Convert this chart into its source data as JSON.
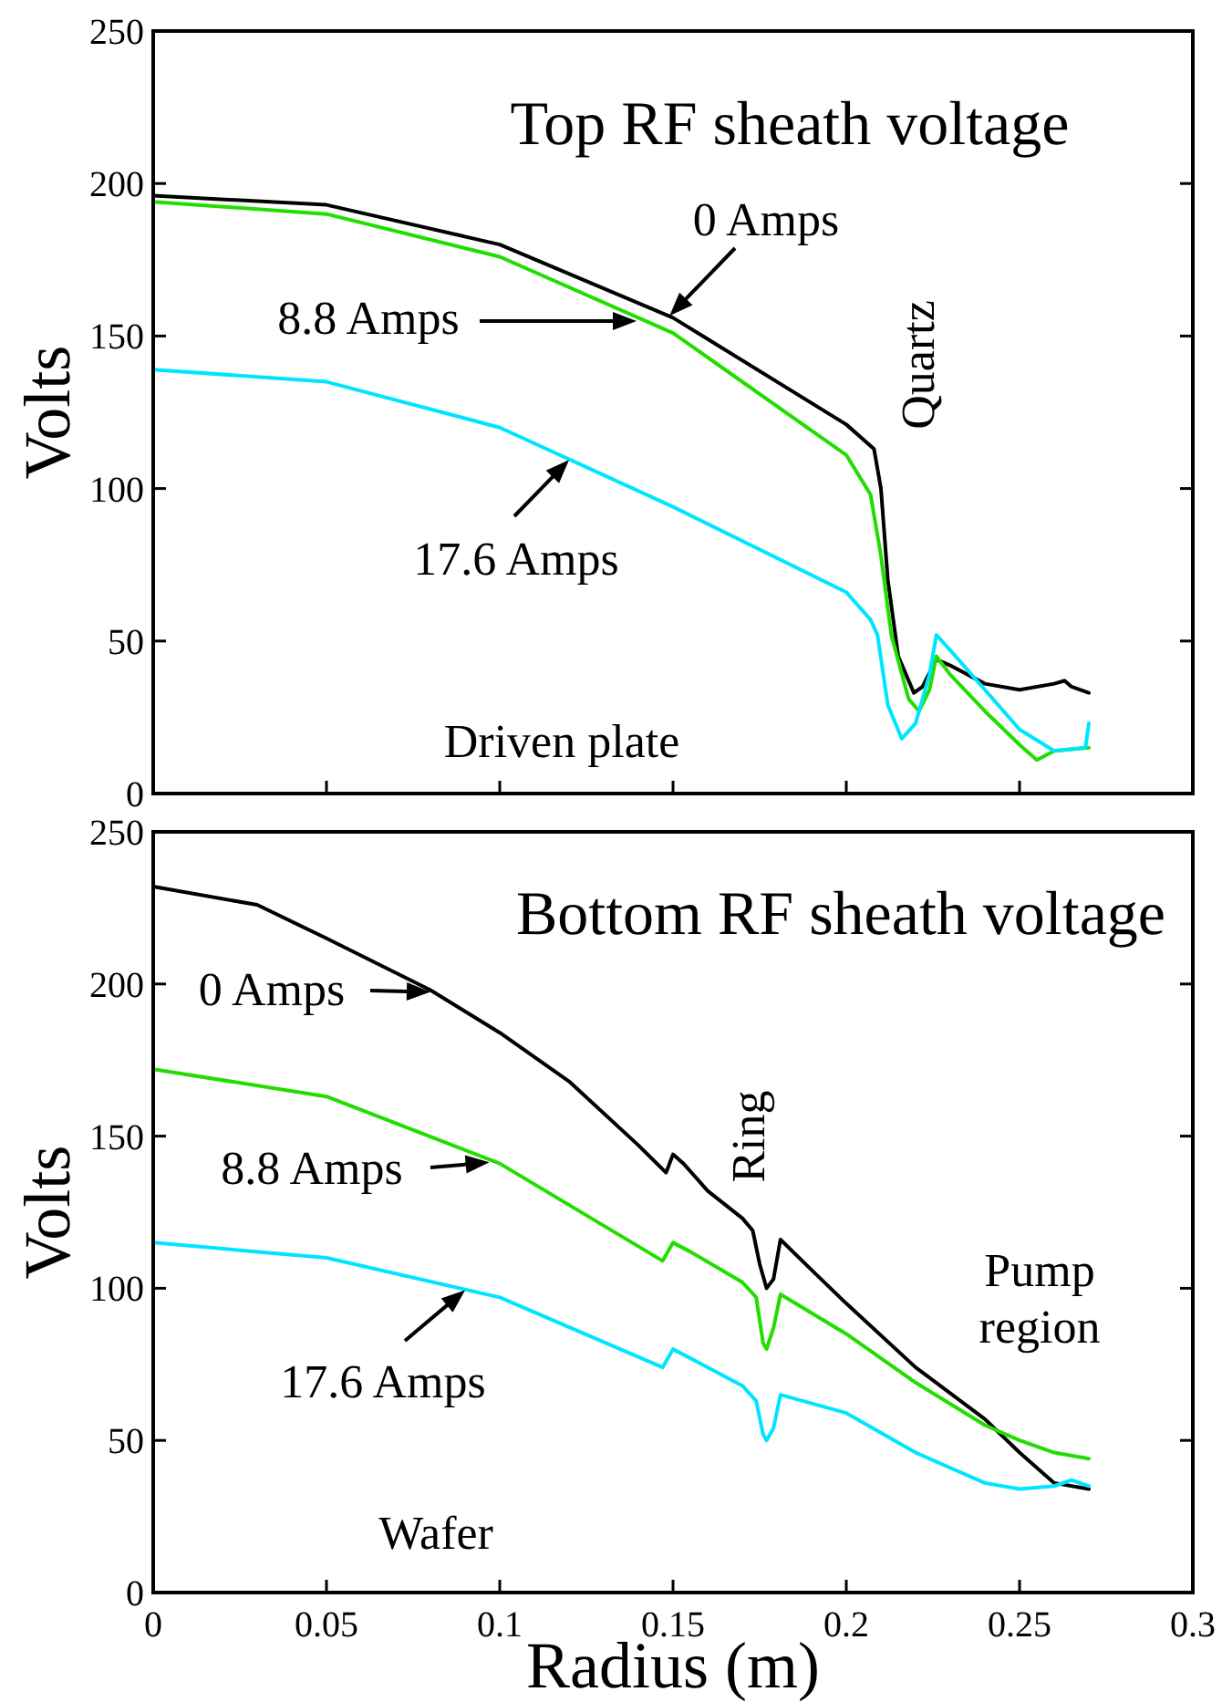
{
  "chart_data": [
    {
      "type": "line",
      "title": "Top RF sheath voltage",
      "ylabel": "Volts",
      "xlim": [
        0,
        0.3
      ],
      "xticks": [
        0,
        0.05,
        0.1,
        0.15,
        0.2,
        0.25,
        0.3
      ],
      "ylim": [
        0,
        250
      ],
      "yticks": [
        0,
        50,
        100,
        150,
        200,
        250
      ],
      "tick_labels": "y",
      "grid": false,
      "annotations": [
        {
          "text": "0 Amps",
          "x": 0.149,
          "y": 156
        },
        "8.8 Amps",
        {
          "text": "17.6 Amps",
          "x": 0.12,
          "y": 110
        },
        "Quartz",
        "Driven plate"
      ],
      "series": [
        {
          "color": "#000000",
          "x": [
            0,
            0.05,
            0.1,
            0.15,
            0.2,
            0.208,
            0.21,
            0.212,
            0.215,
            0.2195,
            0.222,
            0.226,
            0.23,
            0.24,
            0.25,
            0.26,
            0.263,
            0.265,
            0.27
          ],
          "values": [
            196,
            193,
            180,
            156,
            121,
            113,
            100,
            70,
            45,
            33,
            35,
            44,
            42,
            36,
            34,
            36,
            37,
            35,
            33
          ]
        },
        {
          "color": "#22dd00",
          "x": [
            0,
            0.05,
            0.1,
            0.15,
            0.2,
            0.207,
            0.21,
            0.213,
            0.218,
            0.221,
            0.224,
            0.226,
            0.23,
            0.24,
            0.25,
            0.255,
            0.26,
            0.27
          ],
          "values": [
            194,
            190,
            176,
            151,
            111,
            98,
            78,
            52,
            31,
            27,
            34,
            45,
            39,
            27,
            16,
            11,
            14,
            15
          ]
        },
        {
          "color": "#00e5ff",
          "x": [
            0,
            0.05,
            0.1,
            0.15,
            0.2,
            0.207,
            0.209,
            0.212,
            0.216,
            0.22,
            0.224,
            0.226,
            0.23,
            0.24,
            0.25,
            0.26,
            0.269,
            0.27
          ],
          "values": [
            139,
            135,
            120,
            94,
            66,
            57,
            52,
            29,
            18,
            23,
            39,
            52,
            47,
            34,
            21,
            14,
            15,
            23
          ]
        }
      ]
    },
    {
      "type": "line",
      "title": "Bottom RF sheath voltage",
      "xlabel": "Radius (m)",
      "ylabel": "Volts",
      "xlim": [
        0,
        0.3
      ],
      "xticks": [
        0,
        0.05,
        0.1,
        0.15,
        0.2,
        0.25,
        0.3
      ],
      "ylim": [
        0,
        250
      ],
      "yticks": [
        0,
        50,
        100,
        150,
        200,
        250
      ],
      "grid": false,
      "annotations": [
        {
          "text": "0 Amps",
          "x": 0.08,
          "y": 198
        },
        {
          "text": "8.8 Amps",
          "x": 0.097,
          "y": 142
        },
        {
          "text": "17.6 Amps",
          "x": 0.09,
          "y": 100
        },
        "Ring",
        "Pump region",
        "Wafer"
      ],
      "series": [
        {
          "color": "#000000",
          "x": [
            0,
            0.03,
            0.05,
            0.08,
            0.1,
            0.12,
            0.14,
            0.148,
            0.15,
            0.153,
            0.16,
            0.17,
            0.173,
            0.175,
            0.177,
            0.179,
            0.181,
            0.19,
            0.2,
            0.22,
            0.24,
            0.25,
            0.26,
            0.27
          ],
          "values": [
            232,
            226,
            215,
            198,
            184,
            168,
            147,
            138,
            144,
            141,
            132,
            123,
            119,
            108,
            100,
            103,
            116,
            106,
            95,
            74,
            57,
            46,
            36,
            34
          ]
        },
        {
          "color": "#22dd00",
          "x": [
            0,
            0.05,
            0.1,
            0.147,
            0.15,
            0.155,
            0.17,
            0.174,
            0.176,
            0.177,
            0.179,
            0.181,
            0.2,
            0.22,
            0.24,
            0.25,
            0.26,
            0.27
          ],
          "values": [
            172,
            163,
            141,
            109,
            115,
            112,
            102,
            97,
            82,
            80,
            87,
            98,
            85,
            69,
            55,
            50,
            46,
            44
          ]
        },
        {
          "color": "#00e5ff",
          "x": [
            0,
            0.05,
            0.1,
            0.147,
            0.15,
            0.155,
            0.17,
            0.174,
            0.176,
            0.177,
            0.179,
            0.181,
            0.2,
            0.22,
            0.24,
            0.25,
            0.26,
            0.265,
            0.27
          ],
          "values": [
            115,
            110,
            97,
            74,
            80,
            77,
            68,
            63,
            52,
            50,
            54,
            65,
            59,
            46,
            36,
            34,
            35,
            37,
            35
          ]
        }
      ]
    }
  ]
}
